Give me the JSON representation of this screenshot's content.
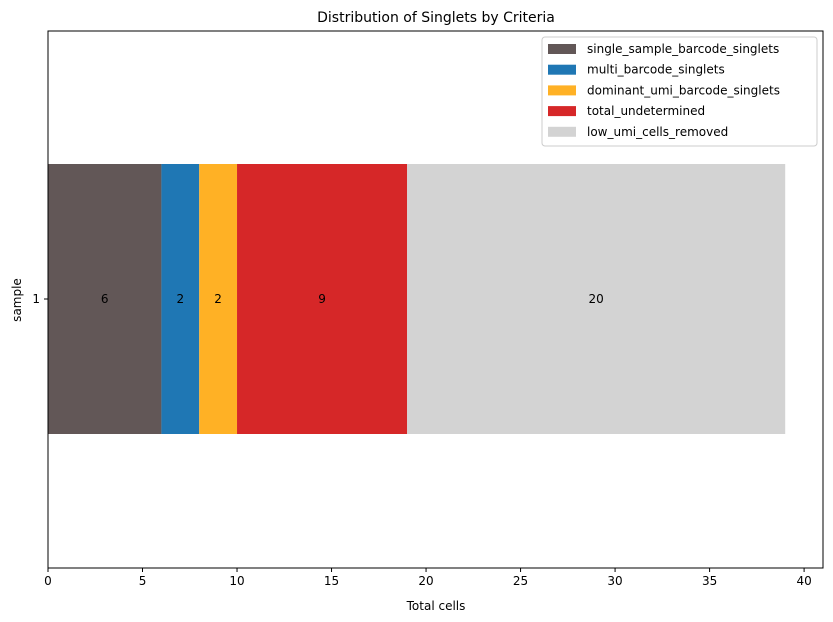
{
  "chart_data": {
    "type": "bar",
    "orientation": "horizontal",
    "stacked": true,
    "title": "Distribution of Singlets by Criteria",
    "xlabel": "Total cells",
    "ylabel": "sample",
    "categories": [
      "1"
    ],
    "xlim": [
      0,
      41
    ],
    "xticks": [
      0,
      5,
      10,
      15,
      20,
      25,
      30,
      35,
      40
    ],
    "grid": false,
    "legend_position": "top-right",
    "series": [
      {
        "name": "single_sample_barcode_singlets",
        "values": [
          6
        ],
        "color": "#625757"
      },
      {
        "name": "multi_barcode_singlets",
        "values": [
          2
        ],
        "color": "#1f77b4"
      },
      {
        "name": "dominant_umi_barcode_singlets",
        "values": [
          2
        ],
        "color": "#ffb125"
      },
      {
        "name": "total_undetermined",
        "values": [
          9
        ],
        "color": "#d62728"
      },
      {
        "name": "low_umi_cells_removed",
        "values": [
          20
        ],
        "color": "#d3d3d3"
      }
    ]
  }
}
